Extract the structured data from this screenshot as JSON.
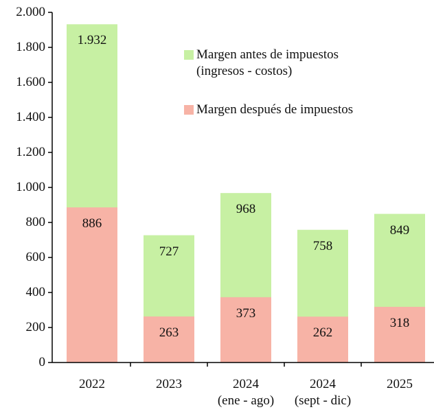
{
  "chart_data": {
    "type": "bar",
    "overlap": true,
    "categories": [
      "2022",
      "2023",
      "2024\n(ene - ago)",
      "2024\n(sept - dic)",
      "2025"
    ],
    "series": [
      {
        "name": "Margen antes de impuestos\n(ingresos - costos)",
        "color": "#c7f0a3",
        "values": [
          1932,
          727,
          968,
          758,
          849
        ],
        "value_labels": [
          "1.932",
          "727",
          "968",
          "758",
          "849"
        ]
      },
      {
        "name": "Margen después de impuestos",
        "color": "#f7b3a6",
        "values": [
          886,
          263,
          373,
          262,
          318
        ]
      }
    ],
    "ylim": [
      0,
      2000
    ],
    "yticks": [
      0,
      200,
      400,
      600,
      800,
      {
        "value": 1000,
        "label": "1.000"
      },
      {
        "value": 1200,
        "label": "1.200"
      },
      {
        "value": 1400,
        "label": "1.400"
      },
      {
        "value": 1600,
        "label": "1.600"
      },
      {
        "value": 1800,
        "label": "1.800"
      },
      {
        "value": 2000,
        "label": "2.000"
      }
    ],
    "grid": false
  }
}
